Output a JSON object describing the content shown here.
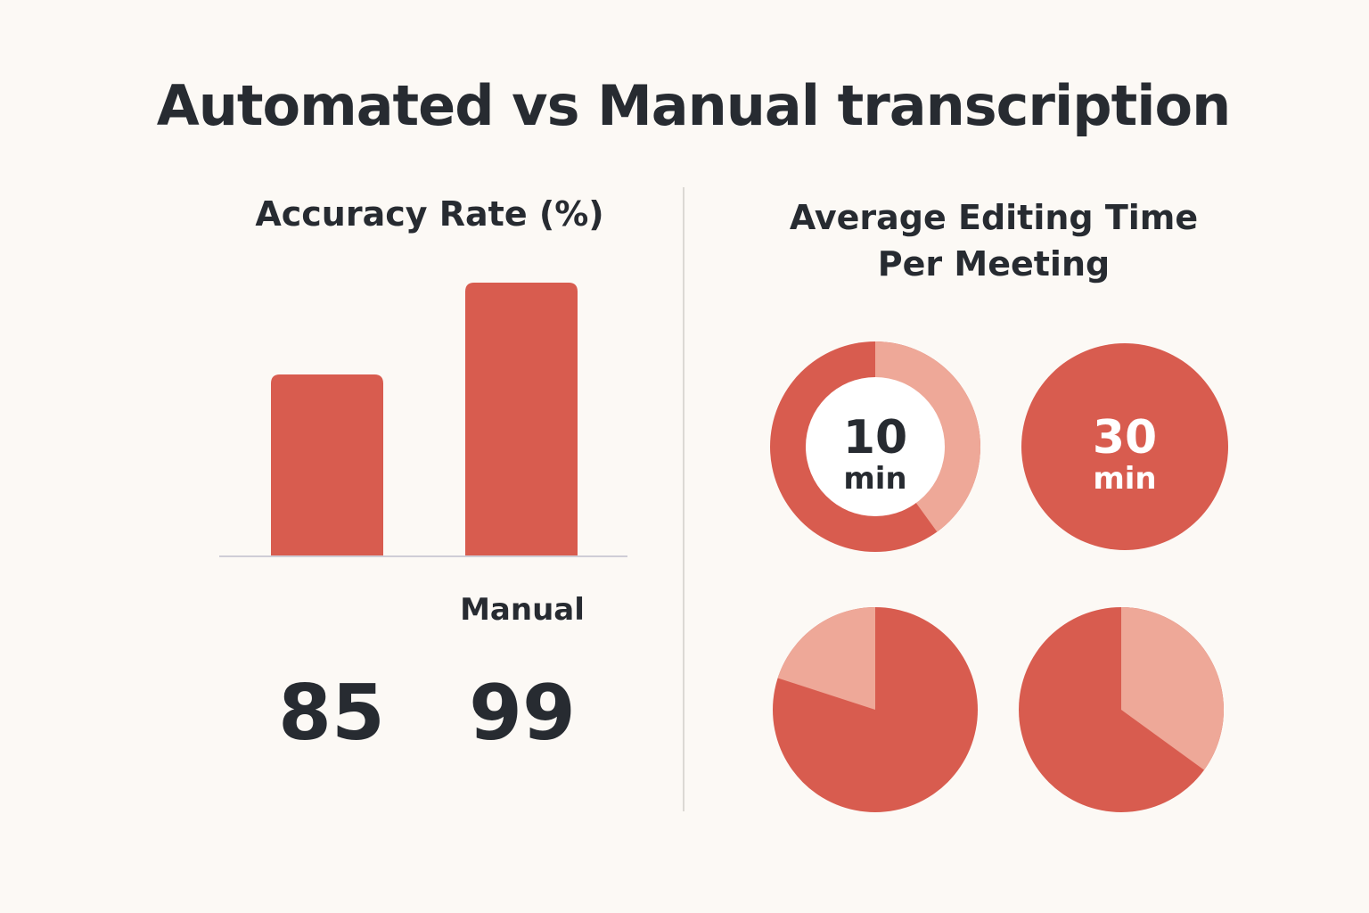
{
  "title": "Automated vs Manual transcription",
  "colors": {
    "primary": "#d85c4f",
    "light": "#eea898",
    "text": "#272b31",
    "background": "#fcf9f5"
  },
  "chart_data": [
    {
      "type": "bar",
      "title": "Accuracy Rate (%)",
      "categories": [
        "",
        "Manual"
      ],
      "values": [
        85,
        99
      ],
      "value_labels": [
        "85",
        "99"
      ]
    },
    {
      "type": "pie",
      "title": "Average Editing Time Per Meeting",
      "rings": [
        {
          "value": 10,
          "label_value": "10",
          "label_unit": "min",
          "dark_fraction": 0.6,
          "style": "donut"
        },
        {
          "value": 30,
          "label_value": "30",
          "label_unit": "min",
          "dark_fraction": 1.0,
          "style": "solid"
        }
      ],
      "pies": [
        {
          "dark_fraction": 0.8
        },
        {
          "dark_fraction": 0.65
        }
      ]
    }
  ]
}
